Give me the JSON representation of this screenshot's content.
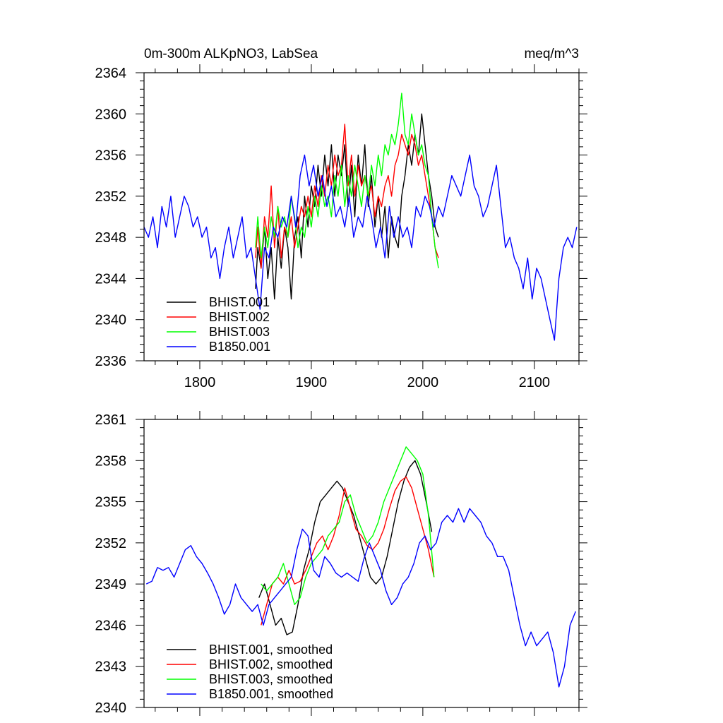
{
  "chart_data": [
    {
      "type": "line",
      "title": "0m-300m ALKpNO3, LabSea",
      "units": "meq/m^3",
      "xlim": [
        1750,
        2140
      ],
      "ylim": [
        2336,
        2364
      ],
      "x_ticks": [
        1800,
        1900,
        2000,
        2100
      ],
      "x_tick_labels": [
        "1800",
        "1900",
        "2000",
        "2100"
      ],
      "y_ticks": [
        2336,
        2340,
        2344,
        2348,
        2352,
        2356,
        2360,
        2364
      ],
      "y_tick_labels": [
        "2336",
        "2340",
        "2344",
        "2348",
        "2352",
        "2356",
        "2360",
        "2364"
      ],
      "legend_position": "bottom-left",
      "series": [
        {
          "name": "BHIST.001",
          "color": "#000000",
          "x": [
            1850,
            1852,
            1855,
            1858,
            1861,
            1864,
            1867,
            1870,
            1873,
            1876,
            1879,
            1882,
            1885,
            1888,
            1891,
            1894,
            1897,
            1900,
            1903,
            1906,
            1909,
            1912,
            1915,
            1918,
            1921,
            1924,
            1927,
            1930,
            1933,
            1936,
            1939,
            1942,
            1945,
            1948,
            1951,
            1954,
            1957,
            1960,
            1963,
            1966,
            1969,
            1972,
            1975,
            1978,
            1981,
            1984,
            1987,
            1990,
            1993,
            1996,
            1999,
            2002,
            2005,
            2008,
            2011,
            2014
          ],
          "y": [
            2343,
            2347,
            2345,
            2349,
            2344,
            2347,
            2342,
            2348,
            2345,
            2349,
            2347,
            2342,
            2348,
            2350,
            2346,
            2352,
            2349,
            2353,
            2351,
            2355,
            2352,
            2356,
            2353,
            2357,
            2352,
            2356,
            2354,
            2357,
            2351,
            2355,
            2350,
            2356,
            2353,
            2357,
            2351,
            2354,
            2349,
            2352,
            2348,
            2351,
            2346,
            2350,
            2348,
            2347,
            2352,
            2354,
            2357,
            2355,
            2358,
            2356,
            2360,
            2357,
            2354,
            2352,
            2349,
            2348
          ]
        },
        {
          "name": "BHIST.002",
          "color": "#ff0000",
          "x": [
            1850,
            1852,
            1855,
            1858,
            1861,
            1864,
            1867,
            1870,
            1873,
            1876,
            1879,
            1882,
            1885,
            1888,
            1891,
            1894,
            1897,
            1900,
            1903,
            1906,
            1909,
            1912,
            1915,
            1918,
            1921,
            1924,
            1927,
            1930,
            1933,
            1936,
            1939,
            1942,
            1945,
            1948,
            1951,
            1954,
            1957,
            1960,
            1963,
            1966,
            1969,
            1972,
            1975,
            1978,
            1981,
            1984,
            1987,
            1990,
            1993,
            1996,
            1999,
            2002,
            2005,
            2008,
            2011,
            2014
          ],
          "y": [
            2346,
            2349,
            2345,
            2350,
            2348,
            2353,
            2347,
            2351,
            2346,
            2349,
            2348,
            2350,
            2347,
            2349,
            2351,
            2350,
            2352,
            2350,
            2353,
            2351,
            2354,
            2352,
            2355,
            2353,
            2356,
            2354,
            2355,
            2359,
            2353,
            2356,
            2352,
            2355,
            2353,
            2354,
            2352,
            2353,
            2350,
            2352,
            2351,
            2353,
            2354,
            2352,
            2355,
            2356,
            2358,
            2357,
            2356,
            2358,
            2357,
            2355,
            2356,
            2354,
            2352,
            2350,
            2347,
            2346
          ]
        },
        {
          "name": "BHIST.003",
          "color": "#00ff00",
          "x": [
            1850,
            1852,
            1855,
            1858,
            1861,
            1864,
            1867,
            1870,
            1873,
            1876,
            1879,
            1882,
            1885,
            1888,
            1891,
            1894,
            1897,
            1900,
            1903,
            1906,
            1909,
            1912,
            1915,
            1918,
            1921,
            1924,
            1927,
            1930,
            1933,
            1936,
            1939,
            1942,
            1945,
            1948,
            1951,
            1954,
            1957,
            1960,
            1963,
            1966,
            1969,
            1972,
            1975,
            1978,
            1981,
            1984,
            1987,
            1990,
            1993,
            1996,
            1999,
            2002,
            2005,
            2008,
            2011,
            2014
          ],
          "y": [
            2347,
            2350,
            2346,
            2349,
            2347,
            2350,
            2348,
            2351,
            2349,
            2350,
            2348,
            2352,
            2350,
            2347,
            2349,
            2348,
            2351,
            2349,
            2352,
            2350,
            2353,
            2351,
            2352,
            2350,
            2354,
            2352,
            2355,
            2351,
            2354,
            2352,
            2355,
            2353,
            2351,
            2354,
            2352,
            2355,
            2353,
            2356,
            2354,
            2357,
            2356,
            2358,
            2357,
            2359,
            2362,
            2358,
            2357,
            2360,
            2358,
            2356,
            2357,
            2355,
            2354,
            2350,
            2347,
            2345
          ]
        },
        {
          "name": "B1850.001",
          "color": "#0000ff",
          "x": [
            1750,
            1754,
            1758,
            1762,
            1766,
            1770,
            1774,
            1778,
            1782,
            1786,
            1790,
            1794,
            1798,
            1802,
            1806,
            1810,
            1814,
            1818,
            1822,
            1826,
            1830,
            1834,
            1838,
            1842,
            1846,
            1850,
            1854,
            1858,
            1862,
            1866,
            1870,
            1874,
            1878,
            1882,
            1886,
            1890,
            1894,
            1898,
            1902,
            1906,
            1910,
            1914,
            1918,
            1922,
            1926,
            1930,
            1934,
            1938,
            1942,
            1946,
            1950,
            1954,
            1958,
            1962,
            1966,
            1970,
            1974,
            1978,
            1982,
            1986,
            1990,
            1994,
            1998,
            2002,
            2006,
            2010,
            2014,
            2018,
            2022,
            2026,
            2030,
            2034,
            2038,
            2042,
            2046,
            2050,
            2054,
            2058,
            2062,
            2066,
            2070,
            2074,
            2078,
            2082,
            2086,
            2090,
            2094,
            2098,
            2102,
            2106,
            2110,
            2114,
            2118,
            2122,
            2126,
            2130,
            2134,
            2138
          ],
          "y": [
            2349,
            2348,
            2350,
            2347,
            2351,
            2349,
            2352,
            2348,
            2350,
            2352,
            2351,
            2349,
            2350,
            2348,
            2349,
            2346,
            2347,
            2344,
            2347,
            2349,
            2346,
            2348,
            2350,
            2346,
            2347,
            2344,
            2341,
            2347,
            2346,
            2349,
            2348,
            2350,
            2349,
            2352,
            2349,
            2354,
            2356,
            2353,
            2355,
            2352,
            2354,
            2351,
            2353,
            2350,
            2351,
            2349,
            2352,
            2348,
            2350,
            2349,
            2352,
            2350,
            2347,
            2349,
            2346,
            2351,
            2348,
            2350,
            2348,
            2349,
            2347,
            2351,
            2350,
            2352,
            2351,
            2349,
            2351,
            2350,
            2352,
            2354,
            2353,
            2352,
            2354,
            2356,
            2353,
            2352,
            2350,
            2351,
            2353,
            2355,
            2351,
            2347,
            2348,
            2346,
            2345,
            2343,
            2346,
            2342,
            2345,
            2344,
            2342,
            2340,
            2338,
            2344,
            2347,
            2348,
            2347,
            2349
          ]
        }
      ]
    },
    {
      "type": "line",
      "title": "",
      "xlim": [
        1750,
        2140
      ],
      "ylim": [
        2340,
        2361
      ],
      "x_ticks": [
        1800,
        1900,
        2000,
        2100
      ],
      "y_ticks": [
        2340,
        2343,
        2346,
        2349,
        2352,
        2355,
        2358,
        2361
      ],
      "y_tick_labels": [
        "2340",
        "2343",
        "2346",
        "2349",
        "2352",
        "2355",
        "2358",
        "2361"
      ],
      "legend_position": "bottom-left",
      "series": [
        {
          "name": "BHIST.001, smoothed",
          "color": "#000000",
          "x": [
            1853,
            1858,
            1863,
            1868,
            1873,
            1878,
            1883,
            1888,
            1893,
            1898,
            1903,
            1908,
            1913,
            1918,
            1923,
            1928,
            1933,
            1938,
            1943,
            1948,
            1953,
            1958,
            1963,
            1968,
            1973,
            1978,
            1983,
            1988,
            1993,
            1998,
            2003,
            2008
          ],
          "y": [
            2348.0,
            2349.0,
            2347.5,
            2346.0,
            2346.5,
            2345.3,
            2345.5,
            2347.5,
            2350.0,
            2351.5,
            2353.5,
            2355.0,
            2355.5,
            2356.0,
            2356.5,
            2356.0,
            2355.0,
            2354.0,
            2352.5,
            2351.0,
            2349.5,
            2349.0,
            2349.5,
            2351.0,
            2353.0,
            2355.0,
            2356.5,
            2357.5,
            2358.0,
            2357.0,
            2355.0,
            2352.8
          ]
        },
        {
          "name": "BHIST.002, smoothed",
          "color": "#ff0000",
          "x": [
            1855,
            1860,
            1865,
            1870,
            1875,
            1880,
            1885,
            1890,
            1895,
            1900,
            1905,
            1910,
            1915,
            1920,
            1925,
            1930,
            1935,
            1940,
            1945,
            1950,
            1955,
            1960,
            1965,
            1970,
            1975,
            1980,
            1985,
            1990,
            1995,
            2000,
            2005,
            2010
          ],
          "y": [
            2346.0,
            2347.5,
            2349.0,
            2349.5,
            2349.0,
            2350.0,
            2349.0,
            2349.2,
            2350.0,
            2351.0,
            2352.0,
            2352.5,
            2351.5,
            2352.5,
            2354.0,
            2356.0,
            2354.5,
            2353.0,
            2352.5,
            2351.8,
            2351.5,
            2352.0,
            2353.0,
            2354.5,
            2355.8,
            2356.5,
            2356.8,
            2356.0,
            2354.5,
            2353.0,
            2351.5,
            2349.5
          ]
        },
        {
          "name": "BHIST.003, smoothed",
          "color": "#00ff00",
          "x": [
            1855,
            1860,
            1865,
            1870,
            1875,
            1880,
            1885,
            1890,
            1895,
            1900,
            1905,
            1910,
            1915,
            1920,
            1925,
            1930,
            1935,
            1940,
            1945,
            1950,
            1955,
            1960,
            1965,
            1970,
            1975,
            1980,
            1985,
            1990,
            1995,
            2000,
            2005,
            2010
          ],
          "y": [
            2349.0,
            2348.5,
            2349.0,
            2349.5,
            2350.5,
            2349.0,
            2347.5,
            2348.0,
            2349.5,
            2350.5,
            2351.0,
            2351.5,
            2352.5,
            2353.0,
            2353.5,
            2355.0,
            2355.5,
            2354.0,
            2353.0,
            2352.0,
            2352.5,
            2353.5,
            2355.0,
            2356.0,
            2357.0,
            2358.0,
            2359.0,
            2358.5,
            2358.0,
            2357.0,
            2354.0,
            2349.5
          ]
        },
        {
          "name": "B1850.001, smoothed",
          "color": "#0000ff",
          "x": [
            1752,
            1757,
            1762,
            1767,
            1772,
            1777,
            1782,
            1787,
            1792,
            1797,
            1802,
            1807,
            1812,
            1817,
            1822,
            1827,
            1832,
            1837,
            1842,
            1847,
            1852,
            1857,
            1862,
            1867,
            1872,
            1877,
            1882,
            1887,
            1892,
            1897,
            1902,
            1907,
            1912,
            1917,
            1922,
            1927,
            1932,
            1937,
            1942,
            1947,
            1952,
            1957,
            1962,
            1967,
            1972,
            1977,
            1982,
            1987,
            1992,
            1997,
            2002,
            2007,
            2012,
            2017,
            2022,
            2027,
            2032,
            2037,
            2042,
            2047,
            2052,
            2057,
            2062,
            2067,
            2072,
            2077,
            2082,
            2087,
            2092,
            2097,
            2102,
            2107,
            2112,
            2117,
            2122,
            2127,
            2132,
            2137
          ],
          "y": [
            2349.0,
            2349.2,
            2350.2,
            2350.0,
            2350.2,
            2349.5,
            2350.5,
            2351.5,
            2351.8,
            2351.0,
            2350.5,
            2349.8,
            2349.0,
            2348.0,
            2346.8,
            2347.5,
            2349.0,
            2348.0,
            2347.5,
            2347.0,
            2347.5,
            2346.0,
            2347.5,
            2348.0,
            2348.5,
            2349.0,
            2349.5,
            2351.5,
            2353.0,
            2352.5,
            2350.0,
            2349.5,
            2351.0,
            2350.5,
            2349.8,
            2349.5,
            2349.8,
            2349.5,
            2349.2,
            2350.8,
            2352.0,
            2351.0,
            2350.0,
            2348.5,
            2347.5,
            2348.0,
            2349.0,
            2349.5,
            2350.5,
            2352.0,
            2352.5,
            2351.5,
            2352.0,
            2353.5,
            2354.0,
            2353.5,
            2354.5,
            2353.5,
            2354.5,
            2354.0,
            2353.5,
            2352.5,
            2352.0,
            2351.0,
            2351.0,
            2350.0,
            2348.0,
            2346.0,
            2344.5,
            2345.5,
            2344.5,
            2345.0,
            2345.5,
            2344.0,
            2341.5,
            2343.0,
            2346.0,
            2347.0
          ]
        }
      ]
    }
  ]
}
